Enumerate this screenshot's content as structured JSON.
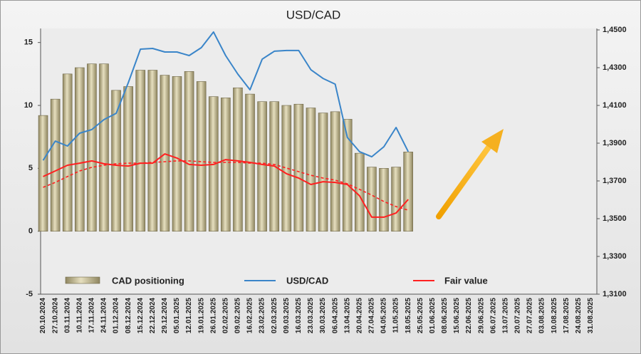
{
  "chart_data": {
    "type": "combo",
    "title": "USD/CAD",
    "categories": [
      "20.10.2024",
      "27.10.2024",
      "03.11.2024",
      "10.11.2024",
      "17.11.2024",
      "24.11.2024",
      "01.12.2024",
      "08.12.2024",
      "15.12.2024",
      "22.12.2024",
      "29.12.2024",
      "05.01.2025",
      "12.01.2025",
      "19.01.2025",
      "26.01.2025",
      "02.02.2025",
      "09.02.2025",
      "16.02.2025",
      "23.02.2025",
      "02.03.2025",
      "09.03.2025",
      "16.03.2025",
      "23.03.2025",
      "30.03.2025",
      "06.04.2025",
      "13.04.2025",
      "20.04.2025",
      "27.04.2025",
      "04.05.2025",
      "11.05.2025",
      "18.05.2025",
      "25.05.2025",
      "01.06.2025",
      "08.06.2025",
      "15.06.2025",
      "22.06.2025",
      "29.06.2025",
      "06.07.2025",
      "13.07.2025",
      "20.07.2025",
      "27.07.2025",
      "03.08.2025",
      "10.08.2025",
      "17.08.2025",
      "24.08.2025",
      "31.08.2025"
    ],
    "series": [
      {
        "name": "CAD positioning",
        "type": "bar",
        "color": "#c8bf95",
        "values": [
          9.2,
          10.5,
          12.5,
          13.0,
          13.3,
          13.3,
          11.2,
          11.5,
          12.8,
          12.8,
          12.4,
          12.3,
          12.7,
          11.9,
          10.7,
          10.6,
          11.4,
          10.9,
          10.3,
          10.3,
          10.0,
          10.1,
          9.8,
          9.4,
          9.5,
          8.9,
          6.2,
          5.1,
          5.0,
          5.1,
          6.3,
          null,
          null,
          null,
          null,
          null,
          null,
          null,
          null,
          null,
          null,
          null,
          null,
          null,
          null,
          null
        ]
      },
      {
        "name": "USD/CAD",
        "type": "line",
        "axis": "y2",
        "color": "#3a85c9",
        "values": [
          1.3809,
          1.3911,
          1.3885,
          1.3953,
          1.3972,
          1.4025,
          1.4058,
          1.4221,
          1.4398,
          1.4402,
          1.4383,
          1.4383,
          1.4364,
          1.4406,
          1.4489,
          1.4364,
          1.4266,
          1.4183,
          1.4345,
          1.4387,
          1.4391,
          1.4391,
          1.4289,
          1.4243,
          1.4213,
          1.393,
          1.3855,
          1.3828,
          1.3881,
          1.3983,
          1.3855,
          null,
          null,
          null,
          null,
          null,
          null,
          null,
          null,
          null,
          null,
          null,
          null,
          null,
          null,
          null
        ]
      },
      {
        "name": "Fair value",
        "type": "line",
        "axis": "y2",
        "color": "#ff2020",
        "values": [
          1.3723,
          1.3753,
          1.3783,
          1.3794,
          1.3806,
          1.3791,
          1.3783,
          1.3779,
          1.3794,
          1.3794,
          1.3843,
          1.3821,
          1.3787,
          1.3783,
          1.3787,
          1.3813,
          1.3806,
          1.3798,
          1.3787,
          1.3779,
          1.3738,
          1.3715,
          1.3681,
          1.3696,
          1.3692,
          1.3681,
          1.3621,
          1.3508,
          1.3508,
          1.353,
          1.3602,
          null,
          null,
          null,
          null,
          null,
          null,
          null,
          null,
          null,
          null,
          null,
          null,
          null,
          null,
          null
        ]
      },
      {
        "type": "line",
        "axis": "y2",
        "color": "#ff2020",
        "dash": true,
        "values": [
          1.3666,
          1.3692,
          1.3723,
          1.3753,
          1.3772,
          1.3783,
          1.3791,
          1.3794,
          1.3794,
          1.3798,
          1.3802,
          1.3806,
          1.3806,
          1.3802,
          1.3798,
          1.3798,
          1.3798,
          1.3794,
          1.3794,
          1.3787,
          1.3768,
          1.3749,
          1.373,
          1.3715,
          1.3704,
          1.3685,
          1.3655,
          1.3625,
          1.3591,
          1.3564,
          1.3545,
          null,
          null,
          null,
          null,
          null,
          null,
          null,
          null,
          null,
          null,
          null,
          null,
          null,
          null,
          null
        ]
      }
    ],
    "ylim": [
      -5,
      16
    ],
    "yticks": [
      -5,
      0,
      5,
      10,
      15
    ],
    "y2lim": [
      1.31,
      1.45
    ],
    "y2ticks": [
      {
        "value": 1.31,
        "label": "1,3100"
      },
      {
        "value": 1.33,
        "label": "1,3300"
      },
      {
        "value": 1.35,
        "label": "1,3500"
      },
      {
        "value": 1.37,
        "label": "1,3700"
      },
      {
        "value": 1.39,
        "label": "1,3900"
      },
      {
        "value": 1.41,
        "label": "1,4100"
      },
      {
        "value": 1.43,
        "label": "1,4300"
      },
      {
        "value": 1.45,
        "label": "1,4500"
      }
    ]
  }
}
